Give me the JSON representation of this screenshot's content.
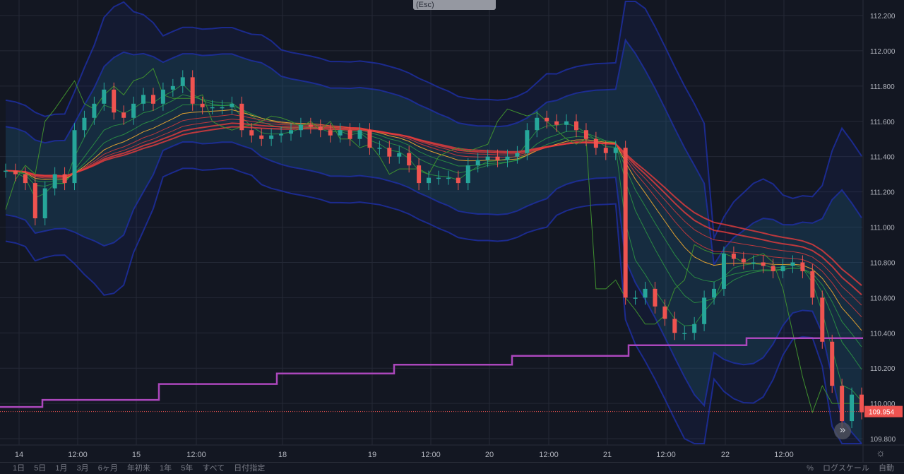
{
  "esc_tooltip": "(Esc)",
  "bottom_bar": {
    "ranges": [
      "1日",
      "5日",
      "1月",
      "3月",
      "6ヶ月",
      "年初来",
      "1年",
      "5年",
      "すべて",
      "日付指定"
    ],
    "right": [
      "%",
      "ログスケール",
      "自動"
    ]
  },
  "colors": {
    "background": "#131722",
    "up": "#26a69a",
    "down": "#ef5350",
    "step_line": "#ab47bc",
    "band": "#1e2fa8",
    "price_label": "#ef5350"
  },
  "chart_data": {
    "type": "candlestick",
    "x_ticks": [
      "14",
      "12:00",
      "15",
      "12:00",
      "18",
      "19",
      "12:00",
      "20",
      "12:00",
      "21",
      "12:00",
      "22",
      "12:00"
    ],
    "y_ticks": [
      "112.200",
      "112.000",
      "111.800",
      "111.600",
      "111.400",
      "111.200",
      "111.000",
      "110.800",
      "110.600",
      "110.400",
      "110.200",
      "110.000",
      "109.800"
    ],
    "ylim": [
      109.76,
      112.26
    ],
    "grid": true,
    "last_price": "109.954",
    "closes": [
      111.32,
      111.3,
      111.25,
      111.05,
      111.22,
      111.3,
      111.25,
      111.55,
      111.62,
      111.7,
      111.78,
      111.65,
      111.62,
      111.7,
      111.75,
      111.7,
      111.78,
      111.8,
      111.85,
      111.7,
      111.68,
      111.68,
      111.68,
      111.7,
      111.55,
      111.52,
      111.5,
      111.52,
      111.53,
      111.55,
      111.58,
      111.57,
      111.55,
      111.52,
      111.55,
      111.5,
      111.55,
      111.45,
      111.45,
      111.4,
      111.42,
      111.35,
      111.25,
      111.28,
      111.28,
      111.28,
      111.25,
      111.35,
      111.38,
      111.4,
      111.38,
      111.4,
      111.42,
      111.55,
      111.62,
      111.6,
      111.58,
      111.6,
      111.55,
      111.5,
      111.45,
      111.42,
      111.45,
      110.6,
      110.6,
      110.65,
      110.55,
      110.48,
      110.4,
      110.4,
      110.45,
      110.6,
      110.65,
      110.85,
      110.82,
      110.8,
      110.8,
      110.78,
      110.75,
      110.78,
      110.8,
      110.75,
      110.6,
      110.35,
      110.1,
      109.9,
      110.05,
      109.95
    ],
    "step_line": [
      109.98,
      110.02,
      110.11,
      110.17,
      110.22,
      110.27,
      110.33,
      110.37
    ]
  }
}
